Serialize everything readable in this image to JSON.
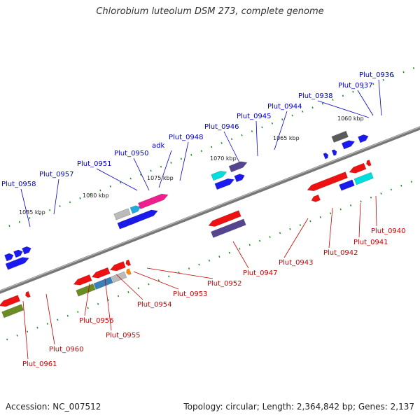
{
  "title": "Chlorobium luteolum DSM 273, complete genome",
  "footer": {
    "accession": "Accession: NC_007512",
    "topology": "Topology: circular; Length: 2,364,842 bp; Genes: 2,137"
  },
  "colors": {
    "forward_label": "#0000cc",
    "reverse_label": "#cc0000",
    "backbone": "#888888",
    "tick": "#1a8a1a"
  },
  "kbp_marks": [
    {
      "label": "1060 kbp"
    },
    {
      "label": "1065 kbp"
    },
    {
      "label": "1070 kbp"
    },
    {
      "label": "1075 kbp"
    },
    {
      "label": "1080 kbp"
    },
    {
      "label": "1085 kbp"
    }
  ],
  "forward_genes": [
    {
      "label": "Plut_0936"
    },
    {
      "label": "Plut_0937"
    },
    {
      "label": "Plut_0938"
    },
    {
      "label": "Plut_0944"
    },
    {
      "label": "Plut_0945"
    },
    {
      "label": "Plut_0946"
    },
    {
      "label": "Plut_0948"
    },
    {
      "label": "adk"
    },
    {
      "label": "Plut_0950"
    },
    {
      "label": "Plut_0951"
    },
    {
      "label": "Plut_0957"
    },
    {
      "label": "Plut_0958"
    }
  ],
  "reverse_genes": [
    {
      "label": "Plut_0940"
    },
    {
      "label": "Plut_0941"
    },
    {
      "label": "Plut_0942"
    },
    {
      "label": "Plut_0943"
    },
    {
      "label": "Plut_0947"
    },
    {
      "label": "Plut_0952"
    },
    {
      "label": "Plut_0953"
    },
    {
      "label": "Plut_0954"
    },
    {
      "label": "Plut_0955"
    },
    {
      "label": "Plut_0956"
    },
    {
      "label": "Plut_0960"
    },
    {
      "label": "Plut_0961"
    }
  ]
}
